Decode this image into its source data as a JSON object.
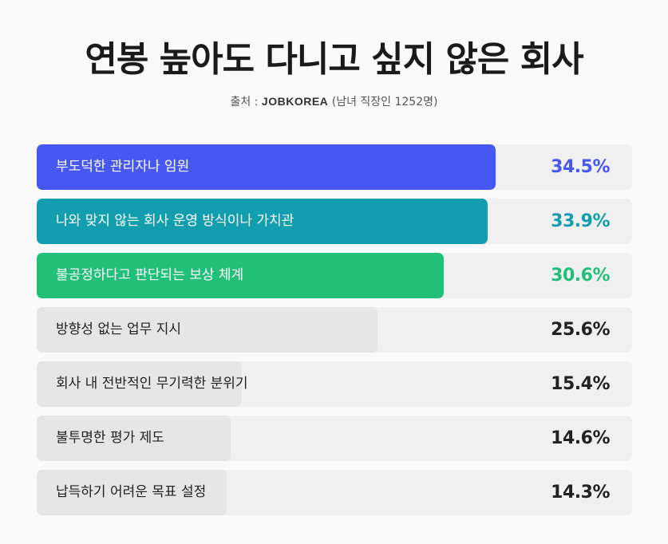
{
  "header": {
    "title": "연봉 높아도 다니고 싶지 않은 회사",
    "source_prefix": "출처 :",
    "source_brand": "JOBKOREA",
    "source_suffix": "(남녀 직장인 1252명)"
  },
  "colors": {
    "top1": "#4657f2",
    "top2": "#139eaf",
    "top3": "#22bf79",
    "other_bar": "#e6e6e6",
    "track": "#f0f0f0"
  },
  "chart_data": {
    "type": "bar",
    "orientation": "horizontal",
    "title": "연봉 높아도 다니고 싶지 않은 회사",
    "categories": [
      "부도덕한 관리자나 임원",
      "나와 맞지 않는 회사 운영 방식이나 가치관",
      "불공정하다고 판단되는 보상 체계",
      "방향성 없는 업무 지시",
      "회사 내 전반적인 무기력한 분위기",
      "불투명한 평가 제도",
      "납득하기 어려운 목표 설정"
    ],
    "values": [
      34.5,
      33.9,
      30.6,
      25.6,
      15.4,
      14.6,
      14.3
    ],
    "value_labels": [
      "34.5%",
      "33.9%",
      "30.6%",
      "25.6%",
      "15.4%",
      "14.6%",
      "14.3%"
    ],
    "unit": "%",
    "xlim": [
      0,
      40
    ]
  }
}
